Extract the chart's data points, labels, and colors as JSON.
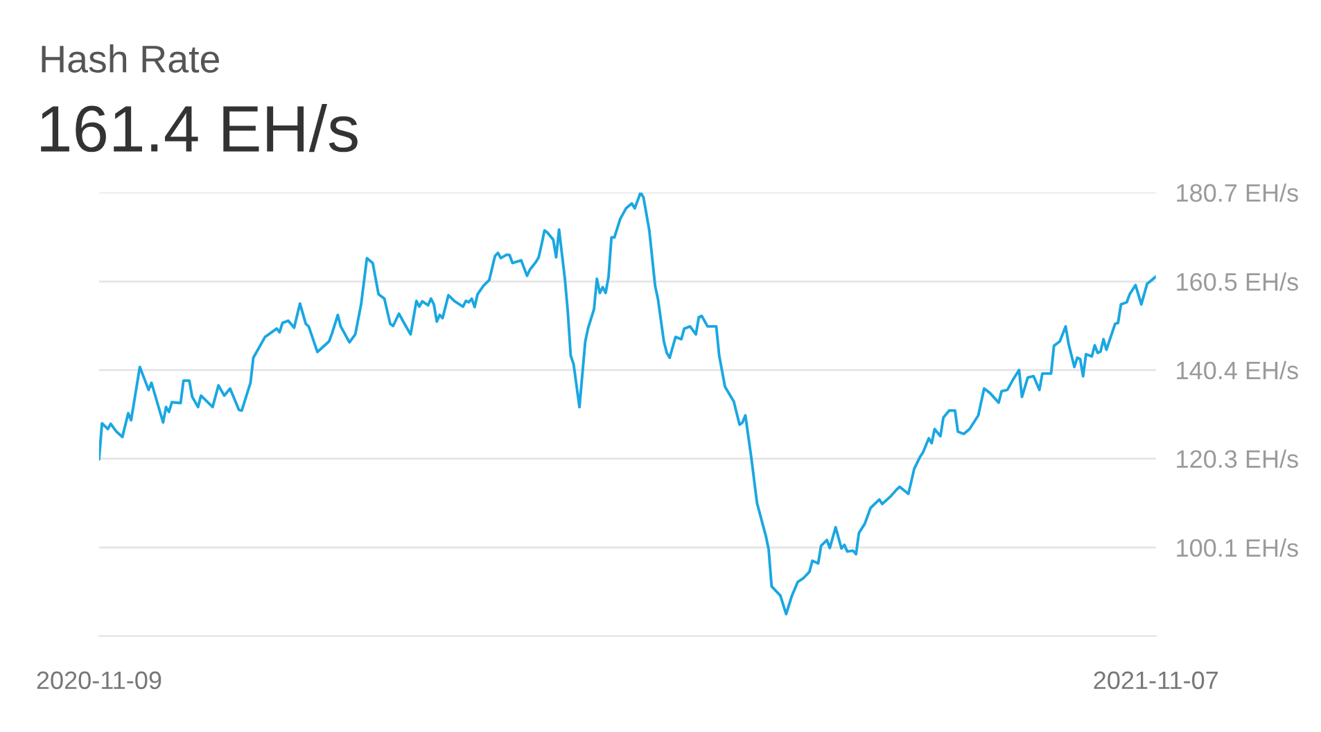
{
  "chart_data": {
    "type": "line",
    "title": "Hash Rate",
    "subtitle": "161.4 EH/s",
    "x": [
      "2020-11-09",
      "2020-11-10",
      "2020-11-12",
      "2020-11-13",
      "2020-11-15",
      "2020-11-17",
      "2020-11-19",
      "2020-11-20",
      "2020-11-23",
      "2020-11-26",
      "2020-11-27",
      "2020-12-01",
      "2020-12-02",
      "2020-12-03",
      "2020-12-04",
      "2020-12-07",
      "2020-12-08",
      "2020-12-10",
      "2020-12-11",
      "2020-12-13",
      "2020-12-14",
      "2020-12-18",
      "2020-12-20",
      "2020-12-22",
      "2020-12-24",
      "2020-12-27",
      "2020-12-28",
      "2020-12-31",
      "2021-01-01",
      "2021-01-05",
      "2021-01-09",
      "2021-01-10",
      "2021-01-11",
      "2021-01-13",
      "2021-01-15",
      "2021-01-17",
      "2021-01-19",
      "2021-01-20",
      "2021-01-23",
      "2021-01-27",
      "2021-01-28",
      "2021-01-30",
      "2021-01-31",
      "2021-02-03",
      "2021-02-05",
      "2021-02-07",
      "2021-02-09",
      "2021-02-11",
      "2021-02-13",
      "2021-02-15",
      "2021-02-17",
      "2021-02-18",
      "2021-02-20",
      "2021-02-22",
      "2021-02-24",
      "2021-02-26",
      "2021-02-27",
      "2021-02-28",
      "2021-03-02",
      "2021-03-03",
      "2021-03-04",
      "2021-03-05",
      "2021-03-06",
      "2021-03-07",
      "2021-03-09",
      "2021-03-11",
      "2021-03-14",
      "2021-03-15",
      "2021-03-16",
      "2021-03-17",
      "2021-03-18",
      "2021-03-19",
      "2021-03-21",
      "2021-03-23",
      "2021-03-25",
      "2021-03-26",
      "2021-03-27",
      "2021-03-29",
      "2021-03-30",
      "2021-03-31",
      "2021-04-03",
      "2021-04-05",
      "2021-04-06",
      "2021-04-08",
      "2021-04-09",
      "2021-04-10",
      "2021-04-11",
      "2021-04-12",
      "2021-04-14",
      "2021-04-15",
      "2021-04-16",
      "2021-04-18",
      "2021-04-19",
      "2021-04-20",
      "2021-04-21",
      "2021-04-23",
      "2021-04-25",
      "2021-04-26",
      "2021-04-28",
      "2021-04-29",
      "2021-04-30",
      "2021-05-01",
      "2021-05-02",
      "2021-05-03",
      "2021-05-04",
      "2021-05-05",
      "2021-05-07",
      "2021-05-09",
      "2021-05-11",
      "2021-05-12",
      "2021-05-14",
      "2021-05-15",
      "2021-05-17",
      "2021-05-19",
      "2021-05-20",
      "2021-05-22",
      "2021-05-23",
      "2021-05-24",
      "2021-05-26",
      "2021-05-28",
      "2021-05-29",
      "2021-05-31",
      "2021-06-02",
      "2021-06-03",
      "2021-06-04",
      "2021-06-06",
      "2021-06-09",
      "2021-06-10",
      "2021-06-12",
      "2021-06-15",
      "2021-06-17",
      "2021-06-18",
      "2021-06-19",
      "2021-06-21",
      "2021-06-23",
      "2021-06-26",
      "2021-06-27",
      "2021-06-28",
      "2021-07-01",
      "2021-07-03",
      "2021-07-05",
      "2021-07-07",
      "2021-07-09",
      "2021-07-11",
      "2021-07-12",
      "2021-07-14",
      "2021-07-15",
      "2021-07-17",
      "2021-07-18",
      "2021-07-20",
      "2021-07-22",
      "2021-07-23",
      "2021-07-24",
      "2021-07-26",
      "2021-07-27",
      "2021-07-28",
      "2021-07-30",
      "2021-08-01",
      "2021-08-04",
      "2021-08-05",
      "2021-08-08",
      "2021-08-10",
      "2021-08-11",
      "2021-08-14",
      "2021-08-16",
      "2021-08-18",
      "2021-08-19",
      "2021-08-21",
      "2021-08-22",
      "2021-08-23",
      "2021-08-25",
      "2021-08-26",
      "2021-08-28",
      "2021-08-30",
      "2021-08-31",
      "2021-09-02",
      "2021-09-04",
      "2021-09-07",
      "2021-09-09",
      "2021-09-11",
      "2021-09-14",
      "2021-09-15",
      "2021-09-17",
      "2021-09-19",
      "2021-09-21",
      "2021-09-22",
      "2021-09-24",
      "2021-09-26",
      "2021-09-28",
      "2021-09-29",
      "2021-10-02",
      "2021-10-03",
      "2021-10-05",
      "2021-10-07",
      "2021-10-08",
      "2021-10-10",
      "2021-10-11",
      "2021-10-12",
      "2021-10-13",
      "2021-10-14",
      "2021-10-16",
      "2021-10-17",
      "2021-10-18",
      "2021-10-19",
      "2021-10-20",
      "2021-10-21",
      "2021-10-24",
      "2021-10-25",
      "2021-10-26",
      "2021-10-28",
      "2021-10-29",
      "2021-10-31",
      "2021-11-02",
      "2021-11-04",
      "2021-11-05",
      "2021-11-07"
    ],
    "series": [
      {
        "color": "#1aa7e1",
        "values": [
          120.1,
          128.3,
          127.0,
          128.2,
          126.4,
          125.2,
          130.6,
          129.0,
          141.1,
          135.9,
          137.5,
          128.5,
          132.0,
          130.9,
          133.1,
          132.9,
          138.0,
          138.0,
          134.3,
          132.0,
          134.6,
          132.0,
          136.9,
          134.6,
          136.2,
          131.4,
          131.2,
          137.5,
          143.2,
          147.9,
          149.8,
          149.0,
          151.1,
          151.6,
          150.0,
          155.5,
          150.9,
          150.3,
          144.5,
          146.9,
          148.7,
          152.9,
          150.3,
          146.7,
          148.5,
          155.3,
          165.8,
          164.7,
          157.6,
          156.6,
          150.9,
          150.4,
          153.2,
          150.8,
          148.5,
          156.1,
          154.8,
          156.0,
          155.1,
          156.6,
          155.3,
          151.4,
          152.9,
          152.2,
          157.4,
          156.1,
          154.8,
          156.1,
          155.8,
          156.6,
          154.7,
          157.6,
          159.5,
          160.8,
          166.3,
          167.0,
          165.8,
          166.6,
          166.5,
          164.7,
          165.3,
          161.8,
          163.2,
          164.9,
          166.0,
          168.9,
          172.1,
          171.6,
          170.0,
          166.0,
          172.3,
          161.1,
          153.7,
          143.7,
          141.7,
          132.0,
          146.9,
          150.0,
          154.2,
          161.1,
          157.9,
          159.2,
          157.9,
          161.6,
          170.5,
          170.5,
          174.7,
          177.1,
          178.2,
          177.1,
          180.7,
          179.6,
          172.1,
          159.5,
          156.4,
          146.9,
          144.3,
          143.2,
          147.9,
          147.4,
          149.8,
          150.3,
          148.5,
          152.4,
          152.7,
          150.3,
          150.3,
          143.7,
          136.6,
          133.3,
          128.0,
          128.5,
          130.1,
          120.7,
          110.2,
          102.8,
          99.7,
          91.3,
          89.2,
          85.0,
          89.2,
          92.3,
          93.2,
          94.6,
          97.1,
          96.5,
          100.5,
          101.8,
          100.0,
          104.7,
          99.9,
          100.7,
          99.2,
          99.4,
          98.6,
          103.4,
          105.5,
          109.1,
          111.0,
          110.0,
          111.8,
          113.3,
          113.9,
          112.3,
          118.0,
          120.7,
          121.7,
          124.9,
          123.8,
          127.0,
          125.4,
          129.6,
          131.2,
          131.2,
          126.4,
          125.9,
          127.0,
          130.1,
          136.2,
          135.2,
          133.0,
          135.6,
          135.9,
          138.3,
          140.4,
          134.3,
          138.7,
          139.0,
          135.9,
          139.6,
          139.6,
          145.9,
          146.9,
          150.3,
          146.4,
          141.1,
          143.2,
          142.9,
          139.0,
          144.0,
          143.5,
          146.0,
          144.3,
          144.6,
          147.4,
          145.0,
          150.9,
          151.1,
          155.3,
          155.8,
          157.6,
          159.7,
          155.3,
          160.0,
          160.5,
          161.6
        ]
      }
    ],
    "xlim": [
      "2020-11-09",
      "2021-11-07"
    ],
    "xticks": [
      {
        "value": "2020-11-09",
        "label": "2020-11-09"
      },
      {
        "value": "2021-11-07",
        "label": "2021-11-07"
      }
    ],
    "ylim": [
      80,
      180.7
    ],
    "yticks": [
      {
        "value": 100.1,
        "label": "100.1 EH/s"
      },
      {
        "value": 120.3,
        "label": "120.3 EH/s"
      },
      {
        "value": 140.4,
        "label": "140.4 EH/s"
      },
      {
        "value": 160.5,
        "label": "160.5 EH/s"
      },
      {
        "value": 180.7,
        "label": "180.7 EH/s"
      }
    ],
    "grid": "y",
    "marker": "none",
    "line_style": "solid"
  }
}
